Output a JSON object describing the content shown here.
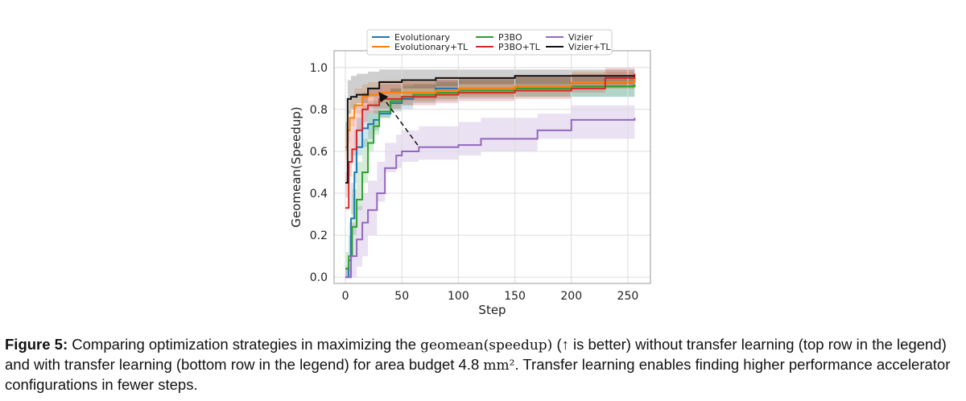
{
  "chart_data": {
    "type": "line",
    "xlabel": "Step",
    "ylabel": "Geomean(Speedup)",
    "xlim": [
      -10,
      270
    ],
    "ylim": [
      -0.03,
      1.08
    ],
    "xticks": [
      0,
      50,
      100,
      150,
      200,
      250
    ],
    "yticks": [
      0.0,
      0.2,
      0.4,
      0.6,
      0.8,
      1.0
    ],
    "xtick_labels": [
      "0",
      "50",
      "100",
      "150",
      "200",
      "250"
    ],
    "ytick_labels": [
      "0.0",
      "0.2",
      "0.4",
      "0.6",
      "0.8",
      "1.0"
    ],
    "grid": true,
    "legend_placement": "top",
    "series": [
      {
        "name": "Evolutionary",
        "color": "#1f77b4",
        "x": [
          0,
          3,
          5,
          8,
          10,
          15,
          20,
          25,
          30,
          40,
          50,
          60,
          80,
          100,
          150,
          200,
          256
        ],
        "y": [
          0.0,
          0.08,
          0.28,
          0.5,
          0.62,
          0.71,
          0.73,
          0.75,
          0.78,
          0.83,
          0.85,
          0.86,
          0.9,
          0.9,
          0.91,
          0.91,
          0.92
        ],
        "band_lo": [
          0.0,
          0.0,
          0.1,
          0.3,
          0.45,
          0.58,
          0.62,
          0.66,
          0.7,
          0.76,
          0.79,
          0.8,
          0.83,
          0.84,
          0.85,
          0.86,
          0.86
        ],
        "band_hi": [
          0.05,
          0.2,
          0.45,
          0.7,
          0.76,
          0.82,
          0.84,
          0.86,
          0.88,
          0.9,
          0.91,
          0.92,
          0.94,
          0.95,
          0.96,
          0.96,
          0.96
        ]
      },
      {
        "name": "P3BO",
        "color": "#2ca02c",
        "x": [
          0,
          3,
          6,
          10,
          15,
          20,
          25,
          30,
          40,
          50,
          60,
          80,
          100,
          150,
          200,
          256
        ],
        "y": [
          0.04,
          0.1,
          0.24,
          0.37,
          0.5,
          0.64,
          0.72,
          0.79,
          0.84,
          0.86,
          0.87,
          0.88,
          0.89,
          0.9,
          0.91,
          0.92
        ],
        "band_lo": [
          0.0,
          0.0,
          0.08,
          0.2,
          0.32,
          0.45,
          0.6,
          0.68,
          0.76,
          0.8,
          0.82,
          0.84,
          0.85,
          0.86,
          0.86,
          0.86
        ],
        "band_hi": [
          0.12,
          0.26,
          0.42,
          0.55,
          0.66,
          0.78,
          0.84,
          0.88,
          0.9,
          0.92,
          0.92,
          0.93,
          0.94,
          0.95,
          0.95,
          0.96
        ]
      },
      {
        "name": "Vizier",
        "color": "#9467bd",
        "x": [
          0,
          5,
          10,
          15,
          20,
          28,
          35,
          45,
          50,
          65,
          100,
          120,
          170,
          200,
          256
        ],
        "y": [
          0.0,
          0.1,
          0.18,
          0.26,
          0.32,
          0.4,
          0.52,
          0.58,
          0.6,
          0.62,
          0.63,
          0.66,
          0.7,
          0.75,
          0.76
        ],
        "band_lo": [
          0.0,
          0.0,
          0.0,
          0.05,
          0.1,
          0.2,
          0.36,
          0.5,
          0.52,
          0.55,
          0.56,
          0.58,
          0.6,
          0.66,
          0.66
        ],
        "band_hi": [
          0.05,
          0.26,
          0.34,
          0.4,
          0.46,
          0.55,
          0.64,
          0.68,
          0.7,
          0.72,
          0.74,
          0.76,
          0.78,
          0.82,
          0.84
        ]
      },
      {
        "name": "Evolutionary+TL",
        "color": "#ff7f0e",
        "x": [
          0,
          2,
          4,
          8,
          15,
          20,
          30,
          50,
          80,
          100,
          150,
          200,
          256
        ],
        "y": [
          0.62,
          0.7,
          0.76,
          0.82,
          0.86,
          0.87,
          0.88,
          0.88,
          0.89,
          0.9,
          0.91,
          0.93,
          0.96
        ],
        "band_lo": [
          0.48,
          0.56,
          0.64,
          0.72,
          0.78,
          0.8,
          0.82,
          0.83,
          0.84,
          0.85,
          0.86,
          0.88,
          0.9
        ],
        "band_hi": [
          0.74,
          0.8,
          0.85,
          0.9,
          0.92,
          0.93,
          0.94,
          0.94,
          0.95,
          0.95,
          0.96,
          0.98,
          1.0
        ]
      },
      {
        "name": "P3BO+TL",
        "color": "#d62728",
        "x": [
          0,
          3,
          6,
          10,
          15,
          20,
          30,
          50,
          80,
          100,
          150,
          200,
          230,
          256
        ],
        "y": [
          0.33,
          0.55,
          0.61,
          0.7,
          0.8,
          0.82,
          0.85,
          0.86,
          0.87,
          0.88,
          0.89,
          0.9,
          0.95,
          0.97
        ],
        "band_lo": [
          0.18,
          0.38,
          0.48,
          0.58,
          0.7,
          0.74,
          0.78,
          0.8,
          0.82,
          0.83,
          0.84,
          0.85,
          0.88,
          0.9
        ],
        "band_hi": [
          0.5,
          0.7,
          0.76,
          0.82,
          0.88,
          0.9,
          0.92,
          0.93,
          0.94,
          0.95,
          0.96,
          0.97,
          1.0,
          1.02
        ]
      },
      {
        "name": "Vizier+TL",
        "color": "#111111",
        "x": [
          0,
          2,
          5,
          10,
          20,
          30,
          50,
          80,
          100,
          150,
          200,
          256
        ],
        "y": [
          0.45,
          0.85,
          0.86,
          0.87,
          0.9,
          0.93,
          0.94,
          0.95,
          0.95,
          0.96,
          0.96,
          0.96
        ],
        "band_lo": [
          0.3,
          0.74,
          0.78,
          0.8,
          0.83,
          0.86,
          0.88,
          0.9,
          0.91,
          0.92,
          0.92,
          0.92
        ],
        "band_hi": [
          0.6,
          0.94,
          0.96,
          0.97,
          0.98,
          0.99,
          0.99,
          0.99,
          0.99,
          0.99,
          0.99,
          0.99
        ]
      }
    ],
    "annotations": [
      {
        "type": "dashed-arrow",
        "from": [
          64,
          0.63
        ],
        "to": [
          30,
          0.88
        ]
      }
    ]
  },
  "caption": {
    "label": "Figure 5:",
    "text_1": " Comparing optimization strategies in maximizing the ",
    "code": "geomean(speedup)",
    "text_2": " (↑ is better) without transfer learning (top row in the legend) and with transfer learning (bottom row in the legend) for area budget 4.8 ",
    "unit": "mm²",
    "text_3": ". Transfer learning enables finding higher performance accelerator configurations in fewer steps."
  }
}
